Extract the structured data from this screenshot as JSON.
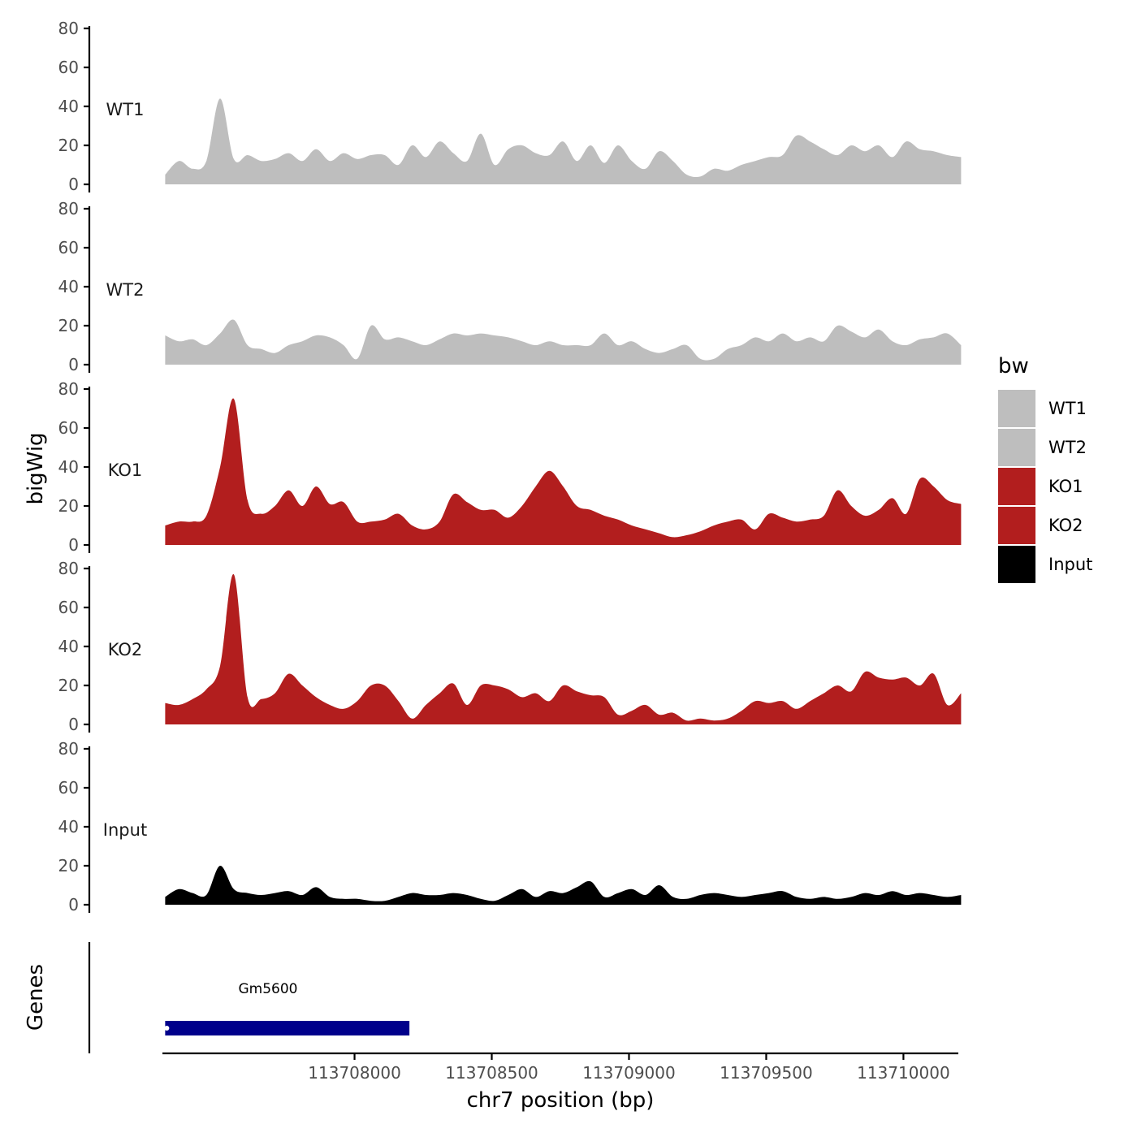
{
  "chart_data": {
    "type": "area",
    "xlabel": "chr7 position (bp)",
    "ylabel": "bigWig",
    "genes_label": "Genes",
    "xlim": [
      113707300,
      113710200
    ],
    "x_ticks": [
      113708000,
      113708500,
      113709000,
      113709500,
      113710000
    ],
    "x_tick_labels": [
      "113708000",
      "113708500",
      "113709000",
      "113709500",
      "113710000"
    ],
    "ylim": [
      0,
      80
    ],
    "y_ticks": [
      0,
      20,
      40,
      60,
      80
    ],
    "y_tick_labels": [
      "0",
      "20",
      "40",
      "60",
      "80"
    ],
    "x_start": 113707310,
    "x_step": 50,
    "grid": false,
    "legend": {
      "title": "bw",
      "position": "right",
      "items": [
        {
          "label": "WT1",
          "color": "#bebebe"
        },
        {
          "label": "WT2",
          "color": "#bebebe"
        },
        {
          "label": "KO1",
          "color": "#b21e1e"
        },
        {
          "label": "KO2",
          "color": "#b21e1e"
        },
        {
          "label": "Input",
          "color": "#000000"
        }
      ]
    },
    "tracks": [
      {
        "name": "WT1",
        "color": "#bebebe",
        "values": [
          5,
          12,
          8,
          12,
          44,
          13,
          15,
          12,
          13,
          16,
          12,
          18,
          12,
          16,
          13,
          15,
          15,
          10,
          20,
          14,
          22,
          16,
          12,
          26,
          10,
          18,
          20,
          16,
          15,
          22,
          12,
          20,
          11,
          20,
          12,
          8,
          17,
          12,
          5,
          4,
          8,
          7,
          10,
          12,
          14,
          15,
          25,
          22,
          18,
          15,
          20,
          17,
          20,
          14,
          22,
          18,
          17,
          15,
          14
        ]
      },
      {
        "name": "WT2",
        "color": "#bebebe",
        "values": [
          15,
          12,
          13,
          10,
          16,
          23,
          10,
          8,
          6,
          10,
          12,
          15,
          14,
          10,
          3,
          20,
          13,
          14,
          12,
          10,
          13,
          16,
          15,
          16,
          15,
          14,
          12,
          10,
          12,
          10,
          10,
          10,
          16,
          10,
          12,
          8,
          6,
          8,
          10,
          3,
          3,
          8,
          10,
          14,
          12,
          16,
          12,
          14,
          12,
          20,
          17,
          14,
          18,
          12,
          10,
          13,
          14,
          16,
          10
        ]
      },
      {
        "name": "KO1",
        "color": "#b21e1e",
        "values": [
          10,
          12,
          12,
          15,
          40,
          75,
          23,
          16,
          20,
          28,
          20,
          30,
          21,
          22,
          12,
          12,
          13,
          16,
          10,
          8,
          12,
          26,
          22,
          18,
          18,
          14,
          20,
          30,
          38,
          30,
          20,
          18,
          15,
          13,
          10,
          8,
          6,
          4,
          5,
          7,
          10,
          12,
          13,
          8,
          16,
          14,
          12,
          13,
          15,
          28,
          20,
          15,
          18,
          24,
          16,
          34,
          30,
          23,
          21
        ]
      },
      {
        "name": "KO2",
        "color": "#b21e1e",
        "values": [
          11,
          10,
          13,
          18,
          30,
          77,
          14,
          13,
          16,
          26,
          20,
          14,
          10,
          8,
          12,
          20,
          20,
          12,
          3,
          10,
          16,
          21,
          10,
          20,
          20,
          18,
          14,
          16,
          12,
          20,
          17,
          15,
          14,
          5,
          7,
          10,
          5,
          6,
          2,
          3,
          2,
          3,
          7,
          12,
          11,
          12,
          8,
          12,
          16,
          20,
          17,
          27,
          24,
          23,
          24,
          20,
          26,
          10,
          16
        ]
      },
      {
        "name": "Input",
        "color": "#000000",
        "values": [
          4,
          8,
          6,
          5,
          20,
          8,
          6,
          5,
          6,
          7,
          5,
          9,
          4,
          3,
          3,
          2,
          2,
          4,
          6,
          5,
          5,
          6,
          5,
          3,
          2,
          5,
          8,
          4,
          7,
          6,
          9,
          12,
          4,
          6,
          8,
          5,
          10,
          4,
          3,
          5,
          6,
          5,
          4,
          5,
          6,
          7,
          4,
          3,
          4,
          3,
          4,
          6,
          5,
          7,
          5,
          6,
          5,
          4,
          5
        ]
      }
    ],
    "genes": [
      {
        "name": "Gm5600",
        "start": 113707310,
        "end": 113708200,
        "color": "#00008b"
      }
    ]
  }
}
